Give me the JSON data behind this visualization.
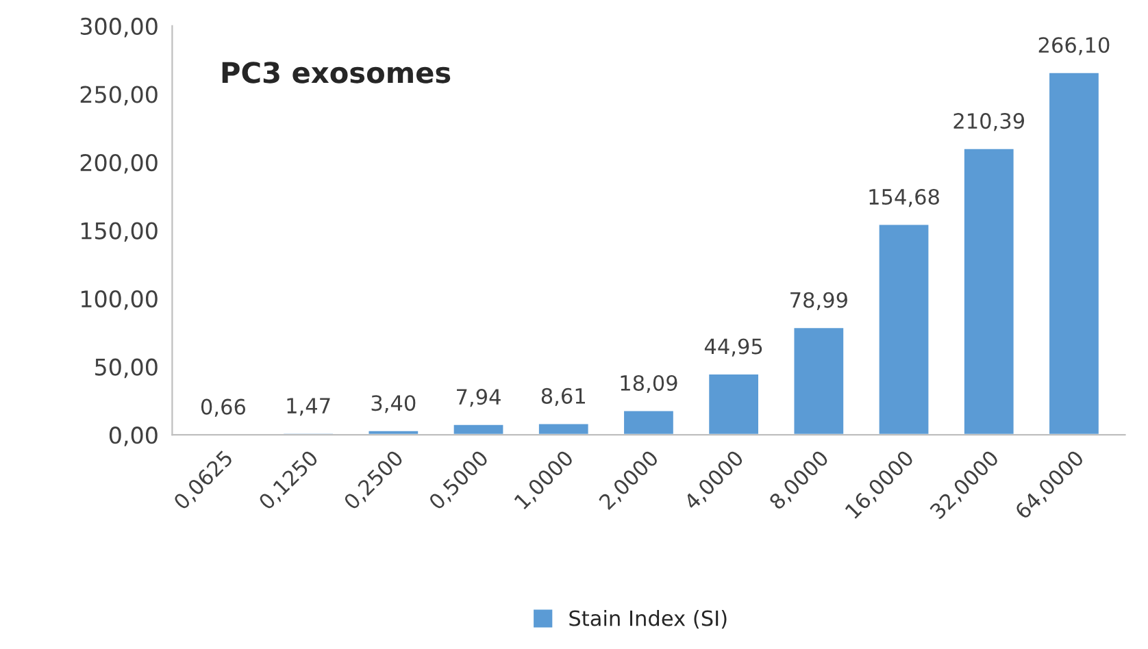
{
  "chart_data": {
    "type": "bar",
    "title": "PC3 exosomes",
    "categories": [
      "0,0625",
      "0,1250",
      "0,2500",
      "0,5000",
      "1,0000",
      "2,0000",
      "4,0000",
      "8,0000",
      "16,0000",
      "32,0000",
      "64,0000"
    ],
    "series": [
      {
        "name": "Stain Index (SI)",
        "color": "#5b9bd5",
        "values": [
          0.66,
          1.47,
          3.4,
          7.94,
          8.61,
          18.09,
          44.95,
          78.99,
          154.68,
          210.39,
          266.1
        ],
        "value_labels": [
          "0,66",
          "1,47",
          "3,40",
          "7,94",
          "8,61",
          "18,09",
          "44,95",
          "78,99",
          "154,68",
          "210,39",
          "266,10"
        ]
      }
    ],
    "ylim": [
      0,
      300
    ],
    "yticks": [
      {
        "value": 0,
        "label": "0,00"
      },
      {
        "value": 50,
        "label": "50,00"
      },
      {
        "value": 100,
        "label": "100,00"
      },
      {
        "value": 150,
        "label": "150,00"
      },
      {
        "value": 200,
        "label": "200,00"
      },
      {
        "value": 250,
        "label": "250,00"
      },
      {
        "value": 300,
        "label": "300,00"
      }
    ],
    "grid": false,
    "legend": "bottom"
  }
}
